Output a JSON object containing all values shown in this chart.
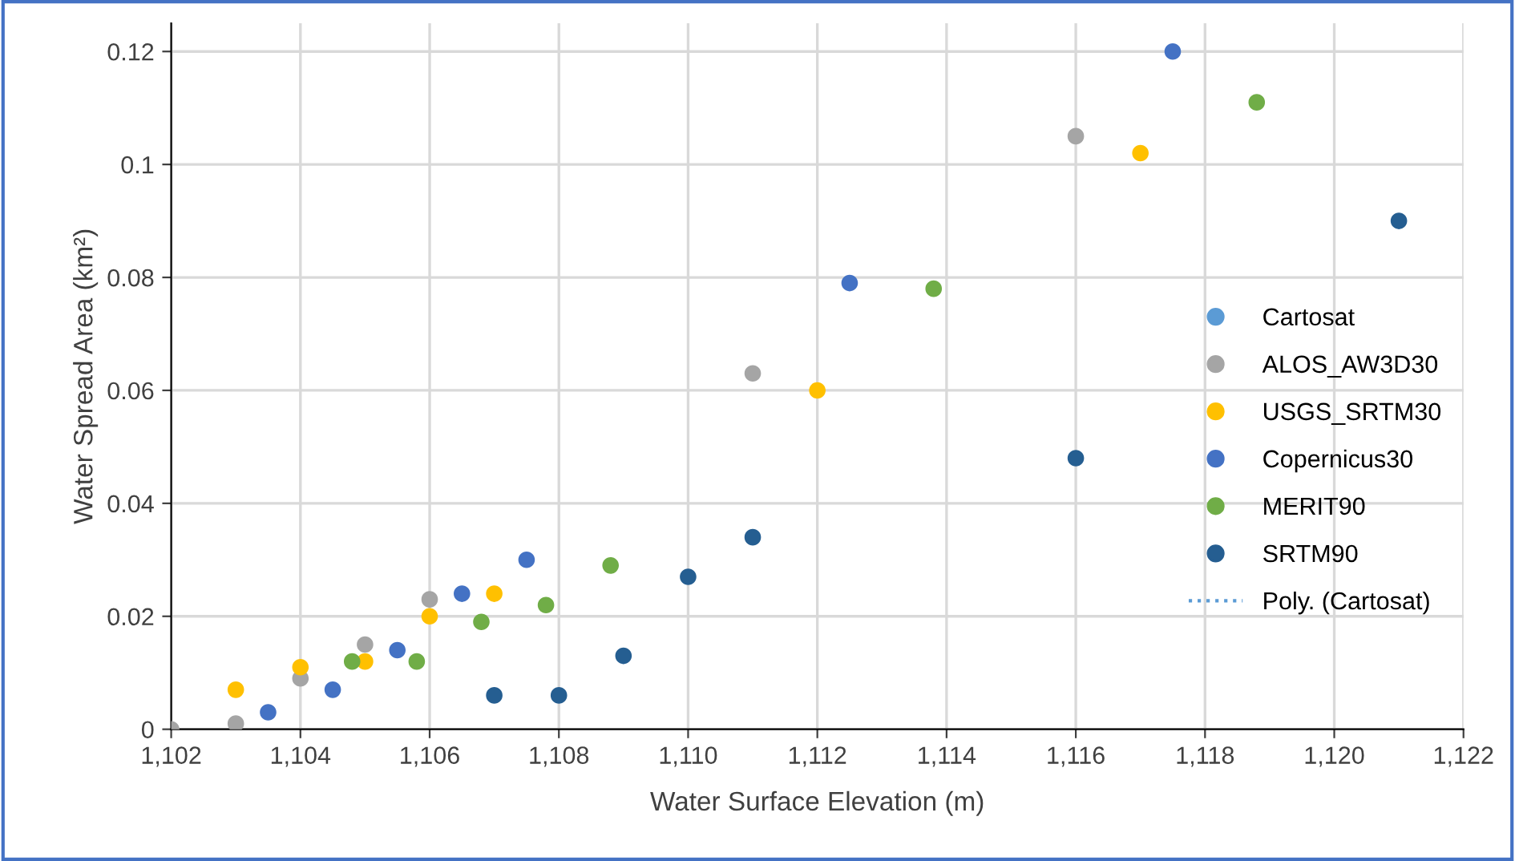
{
  "chart_data": {
    "type": "scatter",
    "xlabel": "Water Surface Elevation (m)",
    "ylabel": "Water Spread Area (km²)",
    "xlim": [
      1102,
      1122
    ],
    "xticks": [
      {
        "value": 1102,
        "label": "1,102"
      },
      {
        "value": 1104,
        "label": "1,104"
      },
      {
        "value": 1106,
        "label": "1,106"
      },
      {
        "value": 1108,
        "label": "1,108"
      },
      {
        "value": 1110,
        "label": "1,110"
      },
      {
        "value": 1112,
        "label": "1,112"
      },
      {
        "value": 1114,
        "label": "1,114"
      },
      {
        "value": 1116,
        "label": "1,116"
      },
      {
        "value": 1118,
        "label": "1,118"
      },
      {
        "value": 1120,
        "label": "1,120"
      },
      {
        "value": 1122,
        "label": "1,122"
      }
    ],
    "ylim": [
      0,
      0.125
    ],
    "yticks": [
      0,
      0.02,
      0.04,
      0.06,
      0.08,
      0.1,
      0.12
    ],
    "grid": true,
    "legend": "right",
    "marker": "circle",
    "series": [
      {
        "name": "Cartosat",
        "color": "#5b9bd5"
      },
      {
        "name": "ALOS_AW3D30",
        "color": "#a5a5a5",
        "x": [
          1102,
          1103,
          1104,
          1105,
          1106,
          1111,
          1116
        ],
        "values": [
          0,
          0.001,
          0.009,
          0.015,
          0.023,
          0.063,
          0.105
        ]
      },
      {
        "name": "USGS_SRTM30",
        "color": "#ffc000",
        "x": [
          1103,
          1104,
          1105,
          1106,
          1107,
          1112,
          1117
        ],
        "values": [
          0.007,
          0.011,
          0.012,
          0.02,
          0.024,
          0.06,
          0.102
        ]
      },
      {
        "name": "Copernicus30",
        "color": "#4472c4",
        "x": [
          1103.5,
          1104.5,
          1105.5,
          1106.5,
          1107.5,
          1112.5,
          1117.5
        ],
        "values": [
          0.003,
          0.007,
          0.014,
          0.024,
          0.03,
          0.079,
          0.12
        ]
      },
      {
        "name": "MERIT90",
        "color": "#70ad47",
        "x": [
          1104.8,
          1105.8,
          1106.8,
          1107.8,
          1108.8,
          1113.8,
          1118.8
        ],
        "values": [
          0.012,
          0.012,
          0.019,
          0.022,
          0.029,
          0.078,
          0.111
        ]
      },
      {
        "name": "SRTM90",
        "color": "#255e91",
        "x": [
          1107,
          1108,
          1109,
          1110,
          1111,
          1116,
          1121
        ],
        "values": [
          0.006,
          0.006,
          0.013,
          0.027,
          0.034,
          0.048,
          0.09
        ]
      },
      {
        "name": "Poly. (Cartosat)",
        "type": "line",
        "line_style": "dotted",
        "marker": "none",
        "color": "#5b9bd5"
      }
    ]
  }
}
